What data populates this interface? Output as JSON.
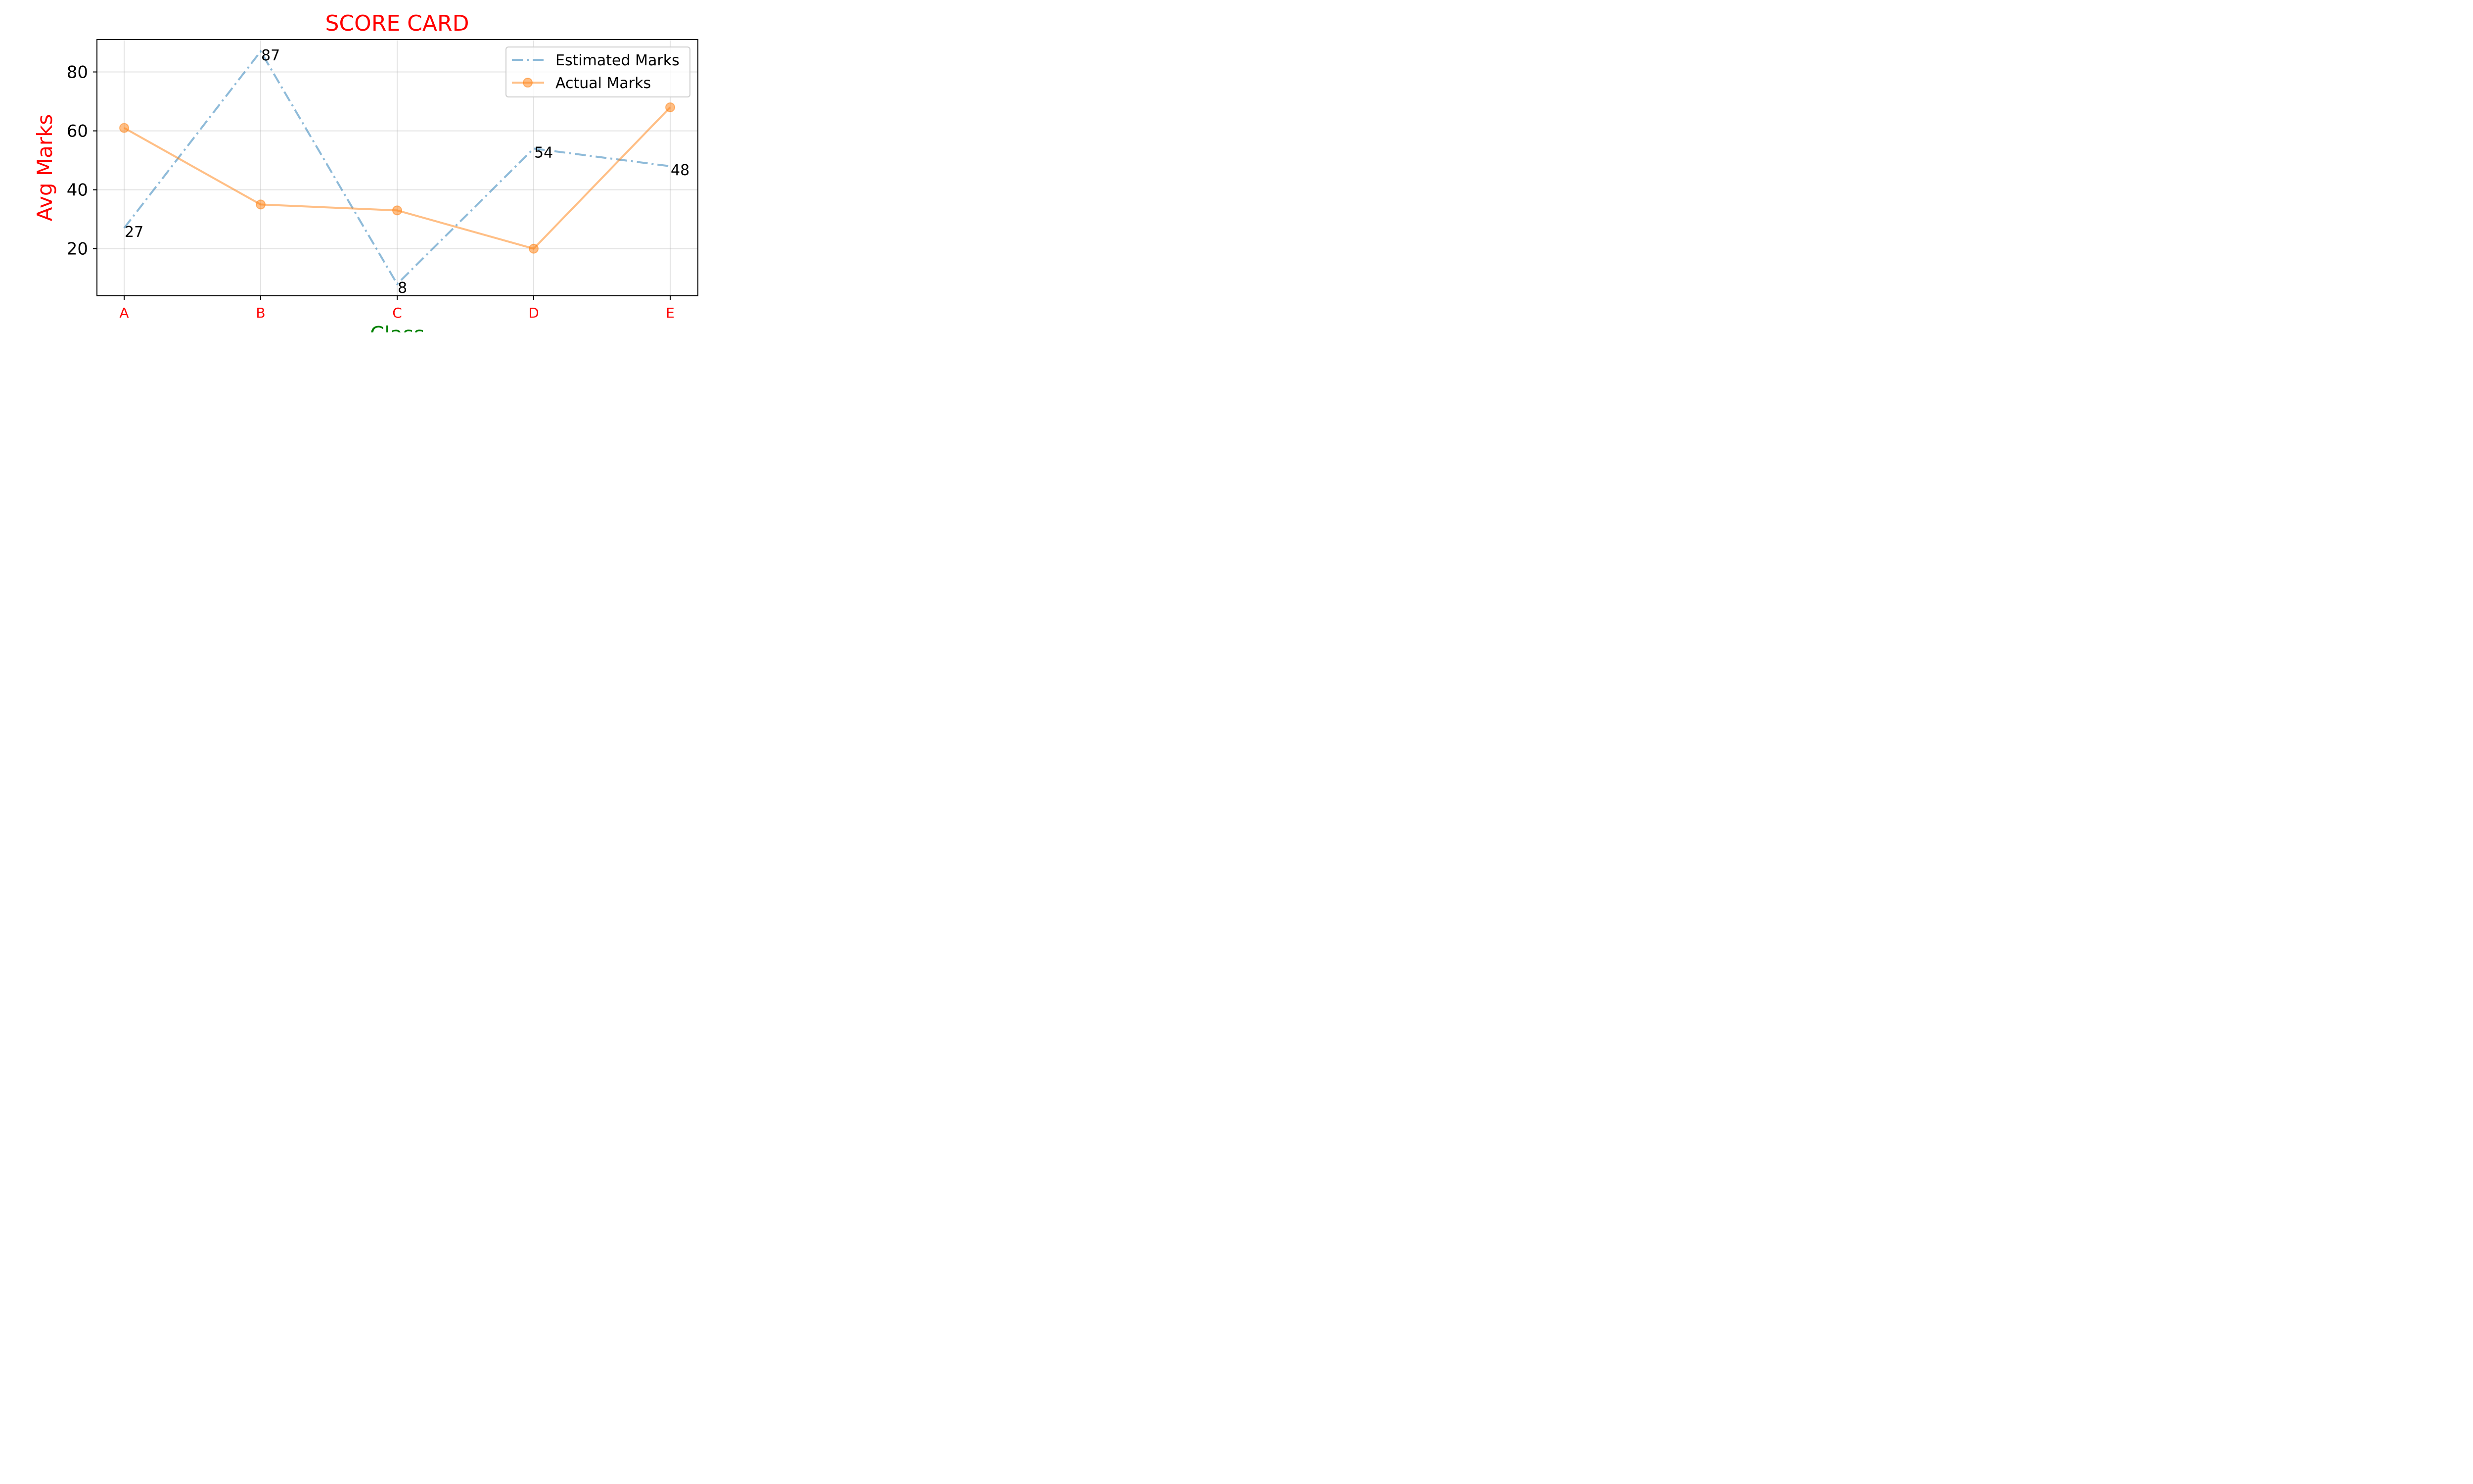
{
  "chart_data": {
    "type": "line",
    "title": "SCORE CARD",
    "xlabel": "Class",
    "ylabel": "Avg Marks",
    "categories": [
      "A",
      "B",
      "C",
      "D",
      "E"
    ],
    "ylim": [
      4,
      91
    ],
    "yticks": [
      20,
      40,
      60,
      80
    ],
    "grid": true,
    "legend_position": "top-right",
    "series": [
      {
        "name": "Estimated Marks",
        "values": [
          27,
          87,
          8,
          54,
          48
        ],
        "color": "#1f77b4",
        "line_style": "dash-dot",
        "markers": false,
        "data_labels": true
      },
      {
        "name": "Actual Marks",
        "values": [
          61,
          35,
          33,
          20,
          68
        ],
        "color": "#ff7f0e",
        "line_style": "solid",
        "markers": true,
        "data_labels": false
      }
    ],
    "colors": {
      "title": "#ff0000",
      "ylabel": "#ff0000",
      "xlabel": "#008000",
      "xticks": "#ff0000",
      "yticks": "#000000"
    }
  }
}
